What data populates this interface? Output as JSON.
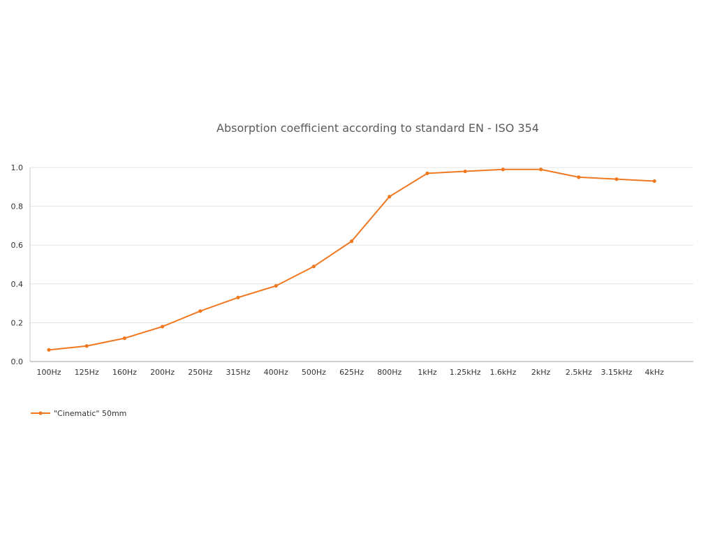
{
  "chart_data": {
    "type": "line",
    "title": "Absorption coefficient according to standard EN - ISO 354",
    "xlabel": "",
    "ylabel": "",
    "categories": [
      "100Hz",
      "125Hz",
      "160Hz",
      "200Hz",
      "250Hz",
      "315Hz",
      "400Hz",
      "500Hz",
      "625Hz",
      "800Hz",
      "1kHz",
      "1.25kHz",
      "1.6kHz",
      "2kHz",
      "2.5kHz",
      "3.15kHz",
      "4kHz"
    ],
    "series": [
      {
        "name": "\"Cinematic\" 50mm",
        "values": [
          0.06,
          0.08,
          0.12,
          0.18,
          0.26,
          0.33,
          0.39,
          0.49,
          0.62,
          0.85,
          0.97,
          0.98,
          0.99,
          0.99,
          0.95,
          0.94,
          0.93
        ],
        "color": "#f07820"
      }
    ],
    "ylim": [
      0,
      1.0
    ],
    "yticks": [
      "0.0",
      "0.2",
      "0.4",
      "0.6",
      "0.8",
      "1.0"
    ],
    "grid": true,
    "legend_position": "bottom-left"
  }
}
